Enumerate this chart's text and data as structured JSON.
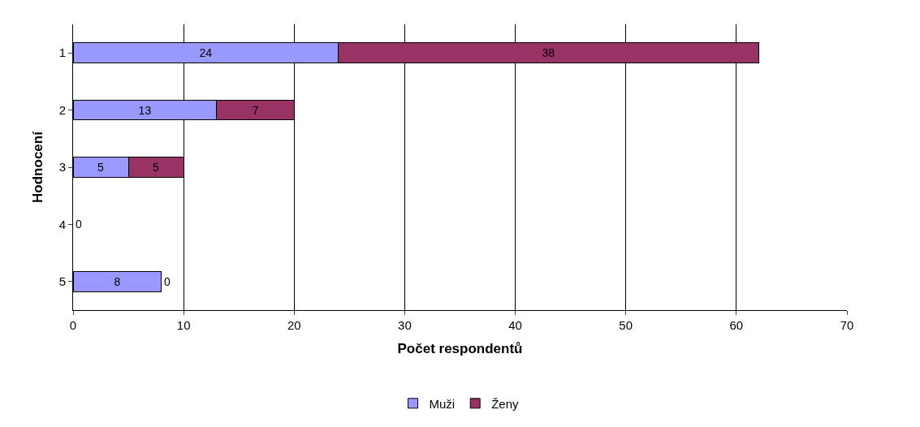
{
  "chart_data": {
    "type": "bar",
    "orientation": "horizontal",
    "stacked": true,
    "xlabel": "Počet respondentů",
    "ylabel": "Hodnocení",
    "categories": [
      "1",
      "2",
      "3",
      "4",
      "5"
    ],
    "series": [
      {
        "name": "Muži",
        "color": "#9999ff",
        "values": [
          24,
          13,
          5,
          0,
          8
        ],
        "value_labels": [
          "24",
          "13",
          "5",
          "0",
          "8"
        ]
      },
      {
        "name": "Ženy",
        "color": "#993366",
        "values": [
          38,
          7,
          5,
          0,
          0
        ],
        "value_labels": [
          "38",
          "7",
          "5",
          null,
          "0"
        ]
      }
    ],
    "xlim": [
      0,
      70
    ],
    "xticks": [
      0,
      10,
      20,
      30,
      40,
      50,
      60,
      70
    ],
    "grid": "x",
    "legend": "bottom"
  }
}
